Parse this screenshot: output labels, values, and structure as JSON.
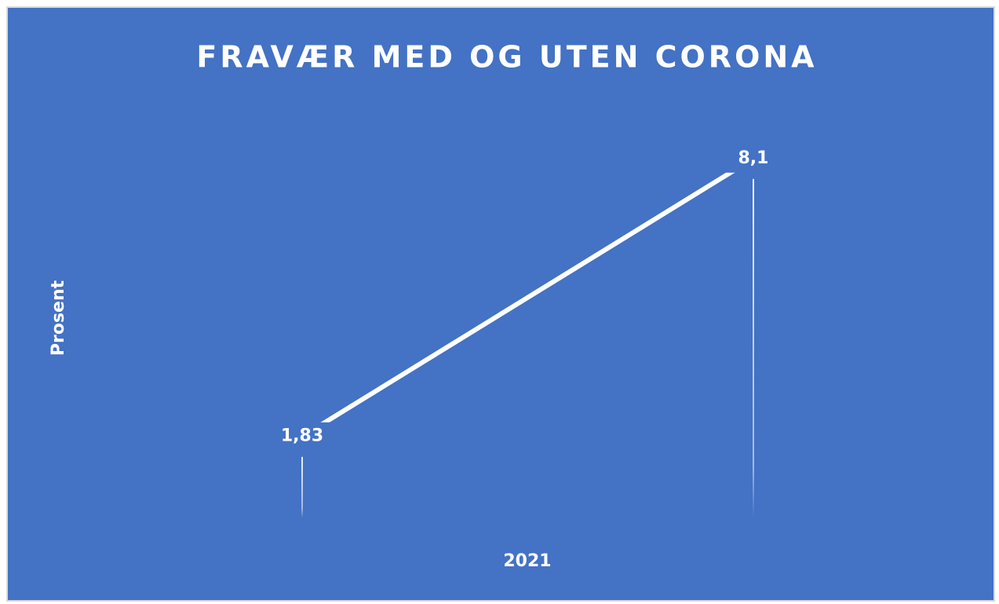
{
  "chart_data": {
    "type": "line",
    "title": "FRAVÆR MED OG UTEN CORONA",
    "x_label": "2021",
    "y_label": "Prosent",
    "categories": [
      null,
      null
    ],
    "values": [
      1.83,
      8.1
    ],
    "value_labels": [
      "1,83",
      "8,1"
    ],
    "color": "#ffffff",
    "background": "#4472c4",
    "drop_lines": true,
    "ylim": [
      0,
      9
    ]
  }
}
